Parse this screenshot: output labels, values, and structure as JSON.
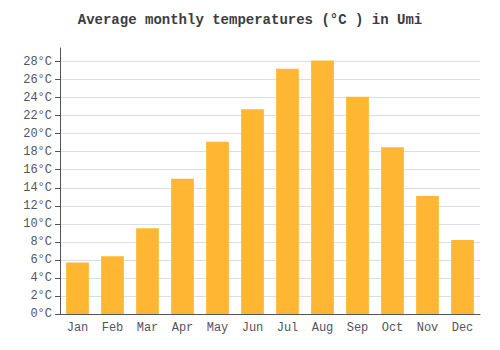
{
  "chart_data": {
    "type": "bar",
    "title": "Average monthly temperatures (°C ) in Umi",
    "categories": [
      "Jan",
      "Feb",
      "Mar",
      "Apr",
      "May",
      "Jun",
      "Jul",
      "Aug",
      "Sep",
      "Oct",
      "Nov",
      "Dec"
    ],
    "values": [
      5.7,
      6.4,
      9.5,
      15.0,
      19.1,
      22.7,
      27.2,
      28.1,
      24.1,
      18.5,
      13.1,
      8.2
    ],
    "color": "#FFB733",
    "ylim": [
      0,
      29.5
    ],
    "yticks": [
      {
        "value": 0,
        "label": "0°C"
      },
      {
        "value": 2,
        "label": "2°C"
      },
      {
        "value": 4,
        "label": "4°C"
      },
      {
        "value": 6,
        "label": "6°C"
      },
      {
        "value": 8,
        "label": "8°C"
      },
      {
        "value": 10,
        "label": "10°C"
      },
      {
        "value": 12,
        "label": "12°C"
      },
      {
        "value": 14,
        "label": "14°C"
      },
      {
        "value": 16,
        "label": "16°C"
      },
      {
        "value": 18,
        "label": "18°C"
      },
      {
        "value": 20,
        "label": "20°C"
      },
      {
        "value": 22,
        "label": "22°C"
      },
      {
        "value": 24,
        "label": "24°C"
      },
      {
        "value": 26,
        "label": "26°C"
      },
      {
        "value": 28,
        "label": "28°C"
      }
    ],
    "grid": true
  }
}
